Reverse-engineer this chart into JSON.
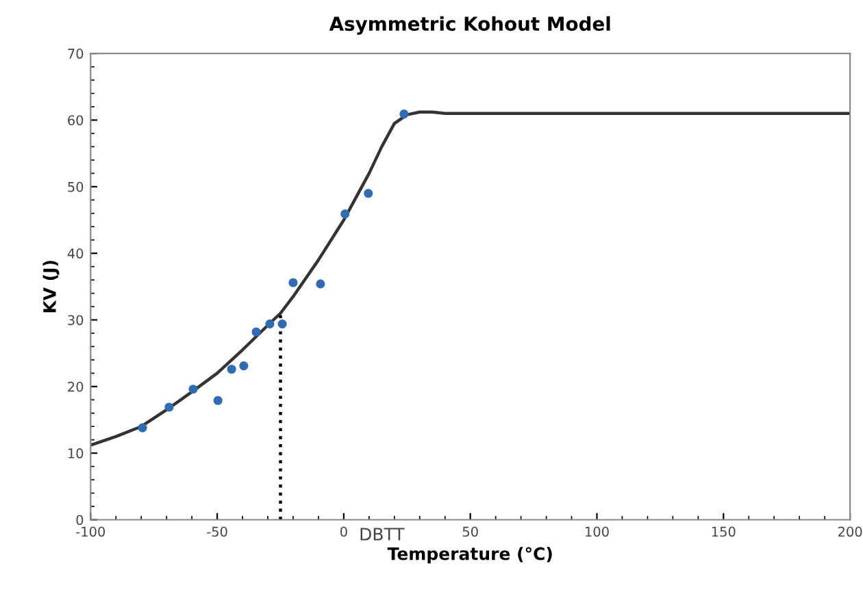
{
  "chart_data": {
    "type": "scatter",
    "title": "Asymmetric Kohout Model",
    "xlabel": "Temperature (°C)",
    "ylabel": "KV (J)",
    "xlim": [
      -100,
      200
    ],
    "xticks": [
      -100,
      -50,
      0,
      50,
      100,
      150,
      200
    ],
    "ylim": [
      0,
      70
    ],
    "yticks": [
      0,
      10,
      20,
      30,
      40,
      50,
      60,
      70
    ],
    "grid": false,
    "legend": false,
    "annotations": [
      "DBTT"
    ],
    "series": [
      {
        "color": "#2e6db4",
        "marker": "circle",
        "x": [
          -79.5,
          -69,
          -59.5,
          -49.7,
          -44.3,
          -39.5,
          -34.6,
          -29.2,
          -24.3,
          -20,
          -9.2,
          0.5,
          9.7,
          23.8
        ],
        "values": [
          13.8,
          16.9,
          19.6,
          17.9,
          22.6,
          23.1,
          28.2,
          29.4,
          29.4,
          35.6,
          35.4,
          45.9,
          49,
          60.9
        ]
      },
      {
        "type": "line",
        "color": "#333333",
        "line_style": "solid",
        "x": [
          -100,
          -90,
          -80,
          -70,
          -60,
          -50,
          -40,
          -30,
          -25,
          -20,
          -10,
          0,
          10,
          15,
          20,
          25,
          30,
          35,
          40,
          200
        ],
        "values": [
          11.2,
          12.5,
          14,
          16.5,
          19.2,
          22,
          25.5,
          29.2,
          31,
          33.5,
          39,
          45,
          52,
          56,
          59.5,
          60.8,
          61.2,
          61.2,
          61,
          61
        ]
      },
      {
        "type": "line",
        "color": "#000000",
        "line_style": "dotted",
        "x": [
          -25,
          -25
        ],
        "values": [
          0,
          31
        ]
      }
    ]
  }
}
